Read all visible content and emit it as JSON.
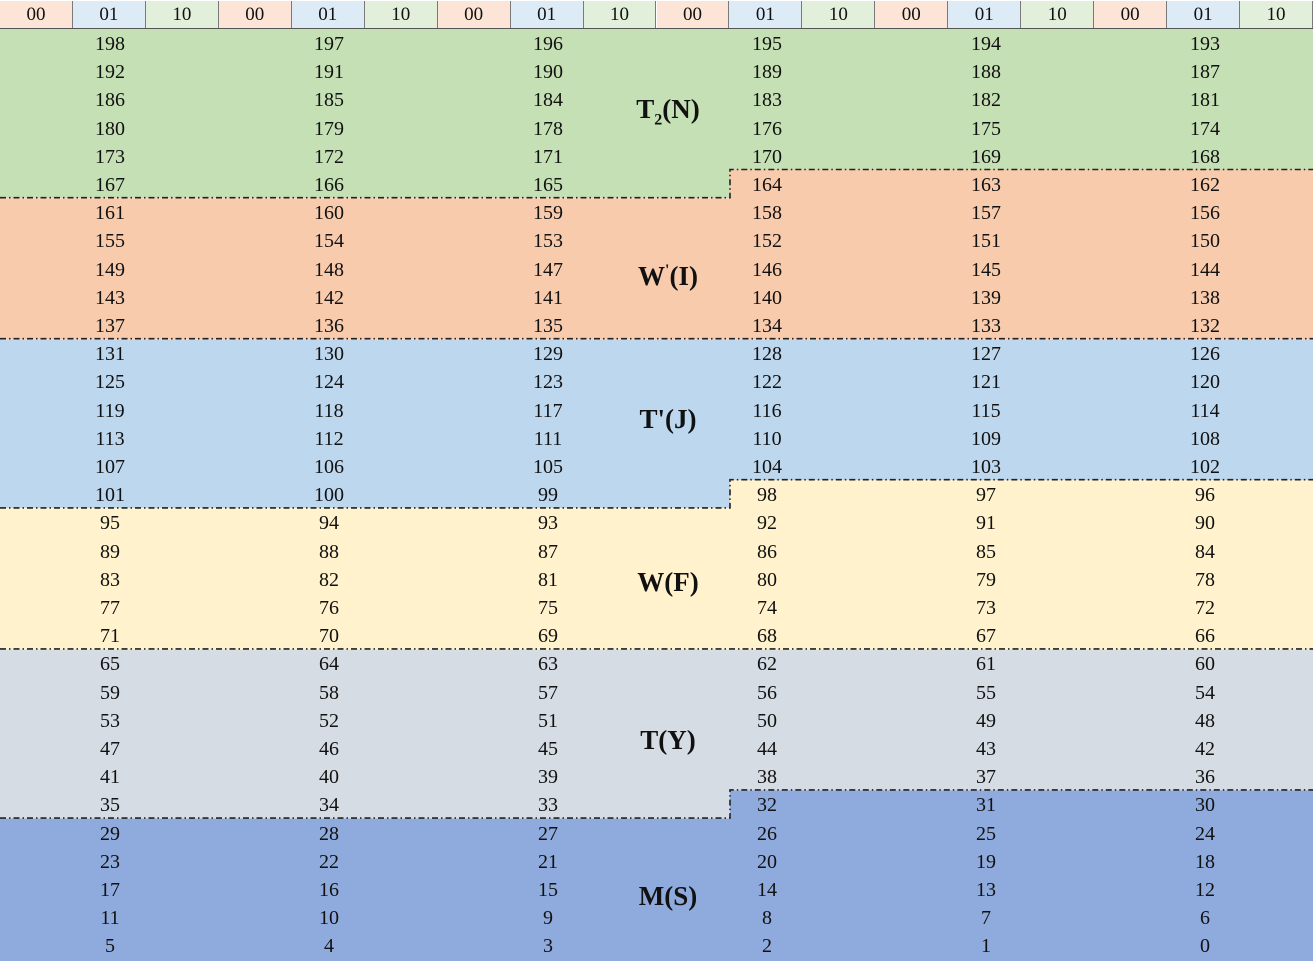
{
  "header": {
    "labels": [
      "00",
      "01",
      "10",
      "00",
      "01",
      "10",
      "00",
      "01",
      "10",
      "00",
      "01",
      "10",
      "00",
      "01",
      "10",
      "00",
      "01",
      "10"
    ],
    "colors": [
      "#FCE4D6",
      "#DDEBF7",
      "#E2EFDA"
    ]
  },
  "zones": [
    {
      "key": "T2N",
      "label_main": "T",
      "label_sub": "2",
      "label_rest": "(N)",
      "color": "#C5E0B4"
    },
    {
      "key": "WpI",
      "label_main": "W",
      "label_sup": "'",
      "label_rest": "(I)",
      "color": "#F8CBAD"
    },
    {
      "key": "TpJ",
      "label_main": "T'(J)",
      "color": "#BDD7EE"
    },
    {
      "key": "WF",
      "label_main": "W(F)",
      "color": "#FFF2CC"
    },
    {
      "key": "TY",
      "label_main": "T(Y)",
      "color": "#D6DCE4"
    },
    {
      "key": "MS",
      "label_main": "M(S)",
      "color": "#8FAADC"
    }
  ],
  "rows": [
    [
      "198",
      "197",
      "196",
      "195",
      "194",
      "193"
    ],
    [
      "192",
      "191",
      "190",
      "189",
      "188",
      "187"
    ],
    [
      "186",
      "185",
      "184",
      "183",
      "182",
      "181"
    ],
    [
      "180",
      "179",
      "178",
      "176",
      "175",
      "174"
    ],
    [
      "173",
      "172",
      "171",
      "170",
      "169",
      "168"
    ],
    [
      "167",
      "166",
      "165",
      "164",
      "163",
      "162"
    ],
    [
      "161",
      "160",
      "159",
      "158",
      "157",
      "156"
    ],
    [
      "155",
      "154",
      "153",
      "152",
      "151",
      "150"
    ],
    [
      "149",
      "148",
      "147",
      "146",
      "145",
      "144"
    ],
    [
      "143",
      "142",
      "141",
      "140",
      "139",
      "138"
    ],
    [
      "137",
      "136",
      "135",
      "134",
      "133",
      "132"
    ],
    [
      "131",
      "130",
      "129",
      "128",
      "127",
      "126"
    ],
    [
      "125",
      "124",
      "123",
      "122",
      "121",
      "120"
    ],
    [
      "119",
      "118",
      "117",
      "116",
      "115",
      "114"
    ],
    [
      "113",
      "112",
      "111",
      "110",
      "109",
      "108"
    ],
    [
      "107",
      "106",
      "105",
      "104",
      "103",
      "102"
    ],
    [
      "101",
      "100",
      "99",
      "98",
      "97",
      "96"
    ],
    [
      "95",
      "94",
      "93",
      "92",
      "91",
      "90"
    ],
    [
      "89",
      "88",
      "87",
      "86",
      "85",
      "84"
    ],
    [
      "83",
      "82",
      "81",
      "80",
      "79",
      "78"
    ],
    [
      "77",
      "76",
      "75",
      "74",
      "73",
      "72"
    ],
    [
      "71",
      "70",
      "69",
      "68",
      "67",
      "66"
    ],
    [
      "65",
      "64",
      "63",
      "62",
      "61",
      "60"
    ],
    [
      "59",
      "58",
      "57",
      "56",
      "55",
      "54"
    ],
    [
      "53",
      "52",
      "51",
      "50",
      "49",
      "48"
    ],
    [
      "47",
      "46",
      "45",
      "44",
      "43",
      "42"
    ],
    [
      "41",
      "40",
      "39",
      "38",
      "37",
      "36"
    ],
    [
      "35",
      "34",
      "33",
      "32",
      "31",
      "30"
    ],
    [
      "29",
      "28",
      "27",
      "26",
      "25",
      "24"
    ],
    [
      "23",
      "22",
      "21",
      "20",
      "19",
      "18"
    ],
    [
      "17",
      "16",
      "15",
      "14",
      "13",
      "12"
    ],
    [
      "11",
      "10",
      "9",
      "8",
      "7",
      "6"
    ],
    [
      "5",
      "4",
      "3",
      "2",
      "1",
      "0"
    ]
  ]
}
